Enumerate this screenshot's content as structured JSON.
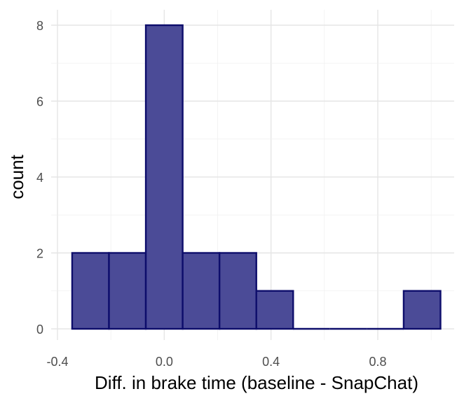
{
  "chart_data": {
    "type": "bar",
    "subtype": "histogram",
    "title": "",
    "xlabel": "Diff. in brake time (baseline - SnapChat)",
    "ylabel": "count",
    "xlim": [
      -0.4,
      1.05
    ],
    "ylim": [
      0,
      8
    ],
    "x_ticks": [
      -0.4,
      0.0,
      0.4,
      0.8
    ],
    "x_tick_labels": [
      "-0.4",
      "0.0",
      "0.4",
      "0.8"
    ],
    "y_ticks": [
      0,
      2,
      4,
      6,
      8
    ],
    "y_tick_labels": [
      "0",
      "2",
      "4",
      "6",
      "8"
    ],
    "bins": [
      {
        "x0": -0.345,
        "x1": -0.207,
        "count": 2
      },
      {
        "x0": -0.207,
        "x1": -0.069,
        "count": 2
      },
      {
        "x0": -0.069,
        "x1": 0.069,
        "count": 8
      },
      {
        "x0": 0.069,
        "x1": 0.207,
        "count": 2
      },
      {
        "x0": 0.207,
        "x1": 0.345,
        "count": 2
      },
      {
        "x0": 0.345,
        "x1": 0.483,
        "count": 1
      },
      {
        "x0": 0.483,
        "x1": 0.621,
        "count": 0
      },
      {
        "x0": 0.621,
        "x1": 0.759,
        "count": 0
      },
      {
        "x0": 0.759,
        "x1": 0.897,
        "count": 0
      },
      {
        "x0": 0.897,
        "x1": 1.035,
        "count": 1
      }
    ],
    "grid": true,
    "colors": {
      "fill": "#4b4b97",
      "stroke": "#0d0d6b"
    }
  }
}
